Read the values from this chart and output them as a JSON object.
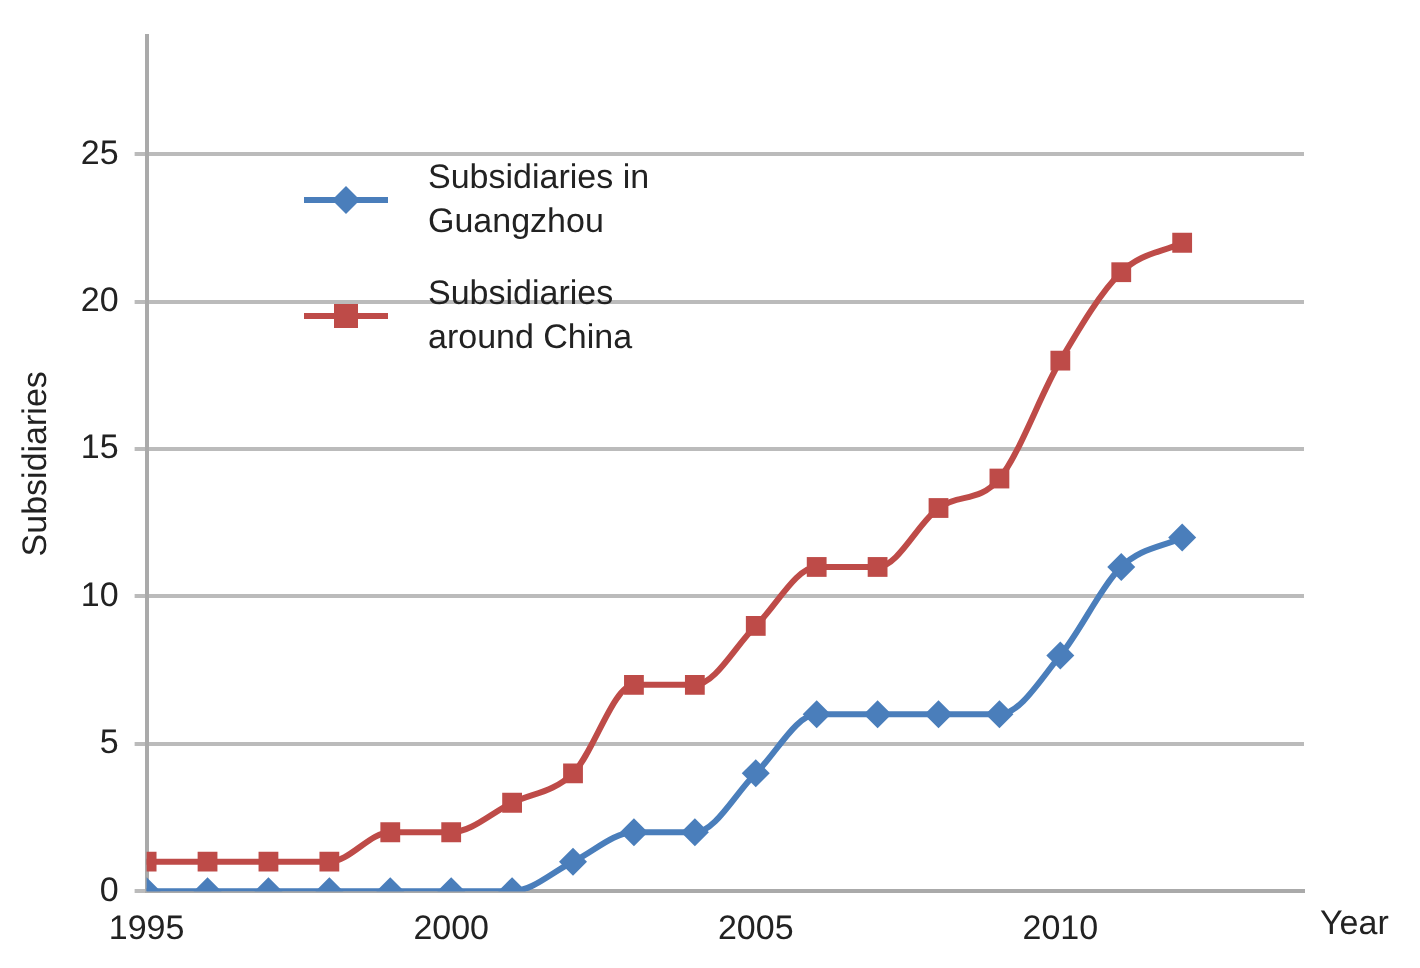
{
  "chart_data": {
    "type": "line",
    "xlabel": "Year",
    "ylabel": "Subsidiaries",
    "x": [
      1995,
      1996,
      1997,
      1998,
      1999,
      2000,
      2001,
      2002,
      2003,
      2004,
      2005,
      2006,
      2007,
      2008,
      2009,
      2010,
      2011,
      2012
    ],
    "series": [
      {
        "name": "Subsidiaries in Guangzhou",
        "color": "#4a7ebb",
        "marker": "diamond",
        "values": [
          0,
          0,
          0,
          0,
          0,
          0,
          0,
          1,
          2,
          2,
          4,
          6,
          6,
          6,
          6,
          8,
          11,
          12
        ]
      },
      {
        "name": "Subsidiaries around China",
        "color": "#be4b48",
        "marker": "square",
        "values": [
          1,
          1,
          1,
          1,
          2,
          2,
          3,
          4,
          7,
          7,
          9,
          11,
          11,
          13,
          14,
          18,
          21,
          22
        ]
      }
    ],
    "xlim": [
      1995,
      2014
    ],
    "xticks": [
      1995,
      2000,
      2005,
      2010
    ],
    "ylim": [
      0,
      29
    ],
    "yticks": [
      0,
      5,
      10,
      15,
      20,
      25
    ],
    "grid": "y",
    "legend": "top left",
    "line_style": "solid"
  }
}
